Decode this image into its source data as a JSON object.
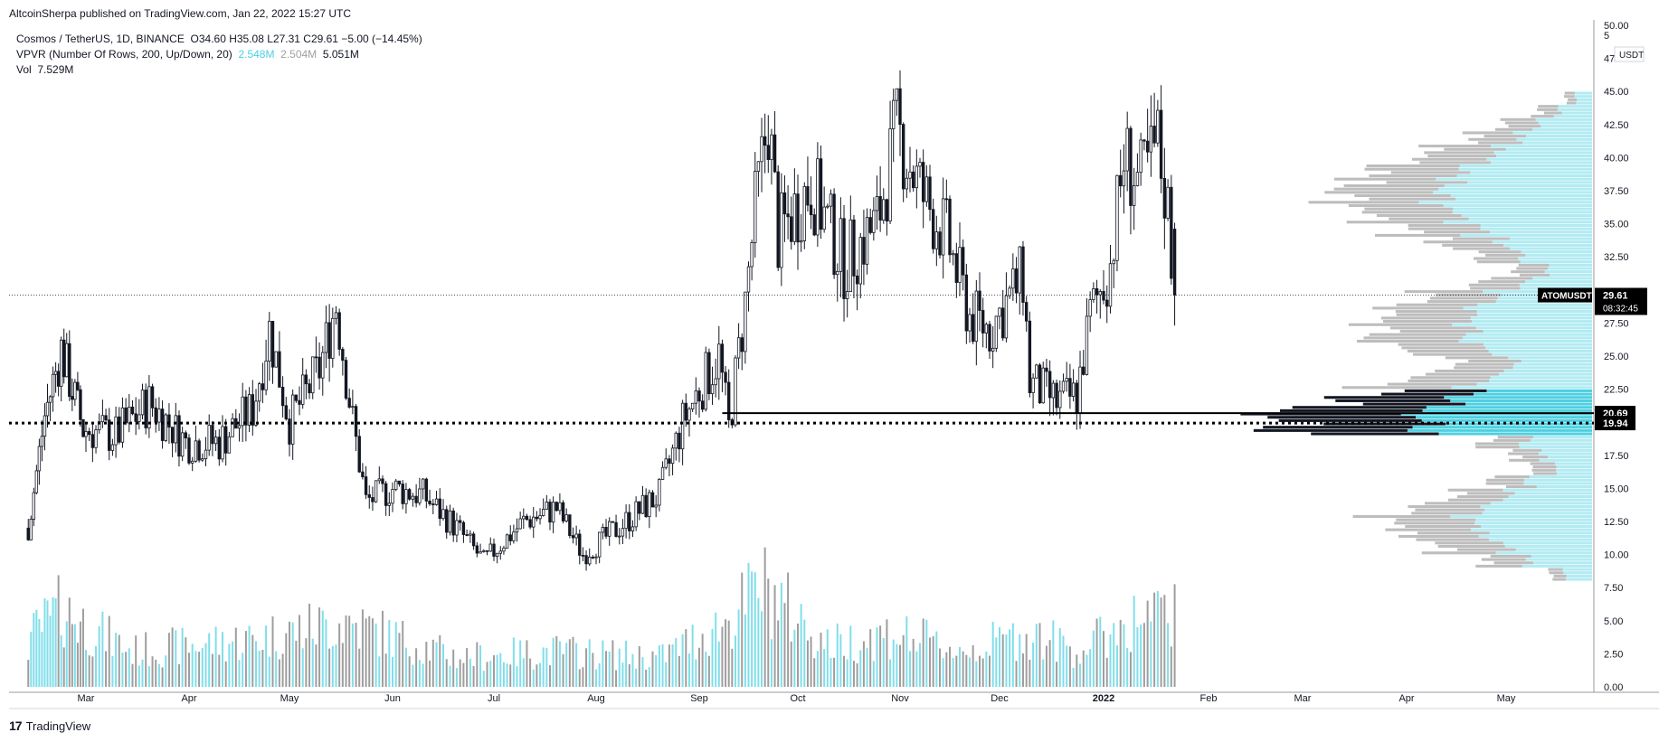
{
  "header": {
    "publisher_line": "AltcoinSherpa published on TradingView.com, Jan 22, 2022 15:27 UTC"
  },
  "legend": {
    "symbol": "Cosmos / TetherUS, 1D, BINANCE",
    "ohlc": "O34.60  H35.08  L27.31  C29.61  −5.00 (−14.45%)",
    "vpvr_label": "VPVR (Number Of Rows, 200, Up/Down, 20)",
    "vpvr_up": "2.548M",
    "vpvr_down": "2.504M",
    "vpvr_total": "5.051M",
    "vol_label": "Vol",
    "vol_value": "7.529M"
  },
  "footer": {
    "brand": "TradingView",
    "brand_mark": "17"
  },
  "colors": {
    "candle": "#131722",
    "vol_up": "#80deea",
    "vol_down": "#9e9e9e",
    "vp_up": "#b2ebf2",
    "vp_down": "#bdbdbd",
    "vp_va_up": "#4dd0e1",
    "vp_va_down": "#131722",
    "level_line": "#000000",
    "price_tag_bg": "#000000"
  },
  "chart_data": {
    "type": "candlestick",
    "symbol": "ATOMUSDT",
    "timeframe": "1D",
    "currency_label": "USDT",
    "ylim": [
      0,
      50
    ],
    "y_ticks": [
      "50.00",
      "47.50",
      "45.00",
      "42.50",
      "40.00",
      "37.50",
      "35.00",
      "32.50",
      "27.50",
      "25.00",
      "22.50",
      "17.50",
      "15.00",
      "12.50",
      "10.00",
      "7.50",
      "5.00",
      "2.50",
      "0.00"
    ],
    "y_tick_top_partial": "5",
    "x_ticks": [
      "Mar",
      "Apr",
      "May",
      "Jun",
      "Jul",
      "Aug",
      "Sep",
      "Oct",
      "Nov",
      "Dec",
      "2022",
      "Feb",
      "Mar",
      "Apr",
      "May"
    ],
    "price_path": [
      [
        "2021-02-08",
        12.0
      ],
      [
        "2021-02-14",
        20.5
      ],
      [
        "2021-02-20",
        25.5
      ],
      [
        "2021-02-28",
        19.5
      ],
      [
        "2021-03-10",
        19.0
      ],
      [
        "2021-03-20",
        21.5
      ],
      [
        "2021-03-31",
        18.5
      ],
      [
        "2021-04-10",
        18.5
      ],
      [
        "2021-04-20",
        21.0
      ],
      [
        "2021-04-25",
        27.0
      ],
      [
        "2021-05-01",
        20.0
      ],
      [
        "2021-05-10",
        24.0
      ],
      [
        "2021-05-15",
        29.0
      ],
      [
        "2021-05-20",
        20.0
      ],
      [
        "2021-05-24",
        14.0
      ],
      [
        "2021-06-01",
        15.0
      ],
      [
        "2021-06-10",
        14.5
      ],
      [
        "2021-06-20",
        12.0
      ],
      [
        "2021-06-28",
        9.5
      ],
      [
        "2021-07-10",
        12.5
      ],
      [
        "2021-07-20",
        13.5
      ],
      [
        "2021-07-28",
        10.0
      ],
      [
        "2021-08-05",
        11.5
      ],
      [
        "2021-08-20",
        14.5
      ],
      [
        "2021-08-27",
        20.0
      ],
      [
        "2021-09-01",
        22.5
      ],
      [
        "2021-09-07",
        25.0
      ],
      [
        "2021-09-10",
        19.5
      ],
      [
        "2021-09-15",
        29.0
      ],
      [
        "2021-09-18",
        36.0
      ],
      [
        "2021-09-22",
        43.0
      ],
      [
        "2021-09-25",
        34.0
      ],
      [
        "2021-10-05",
        38.0
      ],
      [
        "2021-10-15",
        32.0
      ],
      [
        "2021-10-25",
        35.0
      ],
      [
        "2021-10-31",
        42.0
      ],
      [
        "2021-11-08",
        37.0
      ],
      [
        "2021-11-15",
        34.0
      ],
      [
        "2021-11-22",
        28.0
      ],
      [
        "2021-11-28",
        27.0
      ],
      [
        "2021-12-08",
        31.0
      ],
      [
        "2021-12-10",
        23.0
      ],
      [
        "2021-12-18",
        21.5
      ],
      [
        "2021-12-24",
        22.0
      ],
      [
        "2021-12-28",
        28.0
      ],
      [
        "2022-01-03",
        32.0
      ],
      [
        "2022-01-07",
        40.0
      ],
      [
        "2022-01-12",
        38.0
      ],
      [
        "2022-01-17",
        41.0
      ],
      [
        "2022-01-20",
        36.0
      ],
      [
        "2022-01-22",
        29.61
      ]
    ],
    "volume_path": [
      [
        "2021-02-08",
        4.0
      ],
      [
        "2021-02-20",
        6.5
      ],
      [
        "2021-03-15",
        3.0
      ],
      [
        "2021-04-20",
        4.0
      ],
      [
        "2021-05-18",
        5.5
      ],
      [
        "2021-06-20",
        2.5
      ],
      [
        "2021-07-20",
        3.0
      ],
      [
        "2021-08-20",
        2.5
      ],
      [
        "2021-09-10",
        5.5
      ],
      [
        "2021-09-20",
        8.5
      ],
      [
        "2021-10-10",
        3.5
      ],
      [
        "2021-10-30",
        4.5
      ],
      [
        "2021-11-20",
        3.0
      ],
      [
        "2021-12-10",
        4.5
      ],
      [
        "2021-12-25",
        3.0
      ],
      [
        "2022-01-08",
        5.5
      ],
      [
        "2022-01-22",
        6.0
      ]
    ],
    "volume_axis": "shared price axis values 0-8",
    "volume_profile_rows": [
      {
        "price": 44.5,
        "up": 0.05,
        "down": 0.03
      },
      {
        "price": 43.5,
        "up": 0.1,
        "down": 0.06
      },
      {
        "price": 42.5,
        "up": 0.16,
        "down": 0.1
      },
      {
        "price": 41.5,
        "up": 0.22,
        "down": 0.14
      },
      {
        "price": 40.5,
        "up": 0.28,
        "down": 0.2
      },
      {
        "price": 39.5,
        "up": 0.34,
        "down": 0.24
      },
      {
        "price": 38.5,
        "up": 0.4,
        "down": 0.26
      },
      {
        "price": 37.5,
        "up": 0.44,
        "down": 0.3
      },
      {
        "price": 36.5,
        "up": 0.44,
        "down": 0.28
      },
      {
        "price": 35.5,
        "up": 0.4,
        "down": 0.26
      },
      {
        "price": 34.5,
        "up": 0.34,
        "down": 0.22
      },
      {
        "price": 33.5,
        "up": 0.26,
        "down": 0.18
      },
      {
        "price": 32.5,
        "up": 0.2,
        "down": 0.12
      },
      {
        "price": 31.5,
        "up": 0.14,
        "down": 0.1
      },
      {
        "price": 30.5,
        "up": 0.2,
        "down": 0.14
      },
      {
        "price": 29.5,
        "up": 0.28,
        "down": 0.2
      },
      {
        "price": 28.5,
        "up": 0.34,
        "down": 0.24
      },
      {
        "price": 27.5,
        "up": 0.38,
        "down": 0.28
      },
      {
        "price": 26.5,
        "up": 0.34,
        "down": 0.26
      },
      {
        "price": 25.5,
        "up": 0.28,
        "down": 0.22
      },
      {
        "price": 24.5,
        "up": 0.24,
        "down": 0.18
      },
      {
        "price": 23.5,
        "up": 0.28,
        "down": 0.22
      },
      {
        "price": 22.5,
        "up": 0.36,
        "down": 0.28
      },
      {
        "price": 21.5,
        "up": 0.42,
        "down": 0.34
      },
      {
        "price": 20.5,
        "up": 0.5,
        "down": 0.42
      },
      {
        "price": 19.5,
        "up": 0.48,
        "down": 0.4
      },
      {
        "price": 18.5,
        "up": 0.2,
        "down": 0.12
      },
      {
        "price": 17.5,
        "up": 0.14,
        "down": 0.08
      },
      {
        "price": 16.5,
        "up": 0.12,
        "down": 0.08
      },
      {
        "price": 15.5,
        "up": 0.18,
        "down": 0.1
      },
      {
        "price": 14.5,
        "up": 0.26,
        "down": 0.16
      },
      {
        "price": 13.5,
        "up": 0.34,
        "down": 0.22
      },
      {
        "price": 12.5,
        "up": 0.38,
        "down": 0.26
      },
      {
        "price": 11.5,
        "up": 0.34,
        "down": 0.24
      },
      {
        "price": 10.5,
        "up": 0.26,
        "down": 0.2
      },
      {
        "price": 9.5,
        "up": 0.18,
        "down": 0.12
      },
      {
        "price": 8.5,
        "up": 0.08,
        "down": 0.04
      }
    ],
    "value_area_range": [
      19.0,
      22.5
    ],
    "horizontal_levels": [
      {
        "price": 20.69,
        "style": "solid",
        "label": "20.69",
        "from": "2021-09-08"
      },
      {
        "price": 19.94,
        "style": "dotted",
        "label": "19.94",
        "from": "2021-02-01"
      }
    ],
    "last_price": {
      "value": "29.61",
      "symbol_tag": "ATOMUSDT",
      "countdown": "08:32:45",
      "price": 29.61
    }
  }
}
